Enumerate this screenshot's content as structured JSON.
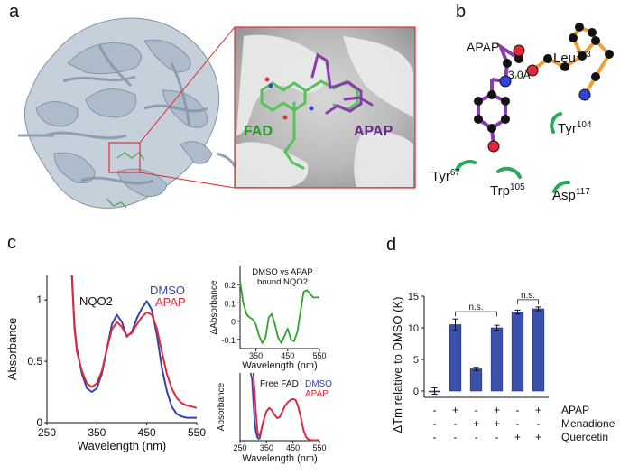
{
  "figure": {
    "panel_labels": [
      "a",
      "b",
      "c",
      "d"
    ]
  },
  "panel_a": {
    "label_fad": "FAD",
    "label_apap": "APAP",
    "colors": {
      "protein": "#a9b8c8",
      "fad": "#55c35a",
      "apap": "#8a3bb0",
      "box": "#e0303a"
    }
  },
  "panel_b": {
    "ligand_label": "APAP",
    "distance_label": "3.0Å",
    "residues": [
      {
        "name": "Leu",
        "num": "103"
      },
      {
        "name": "Tyr",
        "num": "104"
      },
      {
        "name": "Tyr",
        "num": "67"
      },
      {
        "name": "Trp",
        "num": "105"
      },
      {
        "name": "Asp",
        "num": "117"
      }
    ]
  },
  "chart_data": [
    {
      "id": "c_main",
      "type": "line",
      "title": "NQO2",
      "xlabel": "Wavelength (nm)",
      "ylabel": "Absorbance",
      "xlim": [
        250,
        550
      ],
      "ylim": [
        0,
        1.2
      ],
      "xticks": [
        250,
        350,
        450,
        550
      ],
      "yticks": [
        0,
        0.5,
        1
      ],
      "ytick_labels": [
        "0",
        "0.5",
        "1"
      ],
      "series": [
        {
          "name": "DMSO",
          "color": "#3344a8",
          "x": [
            300,
            305,
            310,
            320,
            330,
            340,
            350,
            360,
            370,
            380,
            390,
            400,
            410,
            420,
            430,
            440,
            450,
            460,
            470,
            480,
            490,
            500,
            510,
            520,
            530,
            540,
            550
          ],
          "y": [
            1.2,
            0.8,
            0.6,
            0.4,
            0.28,
            0.25,
            0.28,
            0.4,
            0.6,
            0.8,
            0.88,
            0.82,
            0.7,
            0.74,
            0.85,
            0.93,
            0.99,
            0.92,
            0.72,
            0.45,
            0.26,
            0.13,
            0.07,
            0.05,
            0.04,
            0.04,
            0.04
          ]
        },
        {
          "name": "APAP",
          "color": "#e0283a",
          "x": [
            300,
            305,
            310,
            320,
            330,
            340,
            350,
            360,
            370,
            380,
            390,
            400,
            410,
            420,
            430,
            440,
            450,
            460,
            470,
            480,
            490,
            500,
            510,
            520,
            530,
            540,
            550
          ],
          "y": [
            1.2,
            0.78,
            0.58,
            0.42,
            0.32,
            0.29,
            0.32,
            0.42,
            0.6,
            0.76,
            0.82,
            0.78,
            0.71,
            0.73,
            0.8,
            0.86,
            0.9,
            0.88,
            0.77,
            0.58,
            0.4,
            0.28,
            0.2,
            0.16,
            0.14,
            0.13,
            0.12
          ]
        }
      ]
    },
    {
      "id": "c_diff",
      "type": "line",
      "title": "DMSO vs APAP bound NQO2",
      "xlabel": "Wavelength (nm)",
      "ylabel": "ΔAbsorbance",
      "xlim": [
        300,
        550
      ],
      "ylim": [
        -0.15,
        0.3
      ],
      "xticks": [
        350,
        450,
        550
      ],
      "yticks": [
        -0.1,
        0,
        0.1,
        0.2
      ],
      "ytick_labels": [
        "-0.1",
        "0",
        "0.1",
        "0.2"
      ],
      "series": [
        {
          "color": "#2fa32f",
          "x": [
            300,
            310,
            320,
            330,
            340,
            350,
            360,
            370,
            380,
            390,
            400,
            410,
            420,
            430,
            440,
            450,
            460,
            470,
            480,
            490,
            500,
            510,
            520,
            530,
            540,
            550
          ],
          "y": [
            0.22,
            0.1,
            0.04,
            0.02,
            0.01,
            -0.02,
            -0.08,
            -0.12,
            -0.09,
            0.02,
            0.04,
            -0.02,
            -0.09,
            -0.12,
            -0.08,
            -0.04,
            -0.1,
            -0.11,
            -0.06,
            0.05,
            0.16,
            0.17,
            0.15,
            0.13,
            0.13,
            0.13
          ]
        }
      ]
    },
    {
      "id": "c_fad",
      "type": "line",
      "title": "Free FAD",
      "xlabel": "Wavelength (nm)",
      "ylabel": "Absorbance",
      "xlim": [
        250,
        550
      ],
      "ylim": [
        0,
        1.2
      ],
      "xticks": [
        250,
        350,
        450,
        550
      ],
      "series": [
        {
          "name": "DMSO",
          "color": "#3344a8",
          "x": [
            290,
            295,
            300,
            305,
            310,
            315,
            320,
            325,
            330,
            340,
            350,
            360,
            370,
            380,
            390,
            400,
            410,
            420,
            430,
            440,
            450,
            460,
            470,
            480,
            490,
            500,
            510,
            520,
            530,
            540,
            550
          ],
          "y": [
            1.2,
            1.1,
            0.7,
            0.35,
            0.15,
            0.06,
            0.03,
            0.05,
            0.18,
            0.38,
            0.52,
            0.58,
            0.54,
            0.46,
            0.4,
            0.42,
            0.52,
            0.62,
            0.68,
            0.72,
            0.74,
            0.72,
            0.6,
            0.4,
            0.18,
            0.06,
            0.02,
            0.01,
            0.01,
            0.01,
            0.01
          ]
        },
        {
          "name": "APAP",
          "color": "#e0283a",
          "x": [
            300,
            305,
            310,
            315,
            320,
            325,
            330,
            340,
            350,
            360,
            370,
            380,
            390,
            400,
            410,
            420,
            430,
            440,
            450,
            460,
            470,
            480,
            490,
            500,
            510,
            520,
            530,
            540,
            550
          ],
          "y": [
            1.2,
            0.9,
            0.5,
            0.2,
            0.08,
            0.1,
            0.2,
            0.38,
            0.52,
            0.58,
            0.54,
            0.46,
            0.4,
            0.42,
            0.52,
            0.62,
            0.68,
            0.72,
            0.74,
            0.72,
            0.6,
            0.4,
            0.18,
            0.06,
            0.02,
            0.01,
            0.01,
            0.01,
            0.01
          ]
        }
      ]
    },
    {
      "id": "d",
      "type": "bar",
      "ylabel": "ΔTm relative to DMSO (K)",
      "ylim": [
        -1,
        15
      ],
      "yticks": [
        0,
        5,
        10,
        15
      ],
      "color": "#3a52ad",
      "values": [
        0.0,
        10.5,
        3.5,
        10.0,
        12.5,
        13.0
      ],
      "errors": [
        0.5,
        0.9,
        0.25,
        0.4,
        0.3,
        0.3
      ],
      "condition_rows": [
        {
          "label": "APAP",
          "marks": [
            "-",
            "+",
            "-",
            "+",
            "-",
            "+"
          ]
        },
        {
          "label": "Menadione",
          "marks": [
            "-",
            "-",
            "+",
            "+",
            "-",
            "-"
          ]
        },
        {
          "label": "Quercetin",
          "marks": [
            "-",
            "-",
            "-",
            "-",
            "+",
            "+"
          ]
        }
      ],
      "annotations": [
        {
          "text": "n.s.",
          "from": 1,
          "to": 3
        },
        {
          "text": "n.s.",
          "from": 4,
          "to": 5
        }
      ]
    }
  ]
}
